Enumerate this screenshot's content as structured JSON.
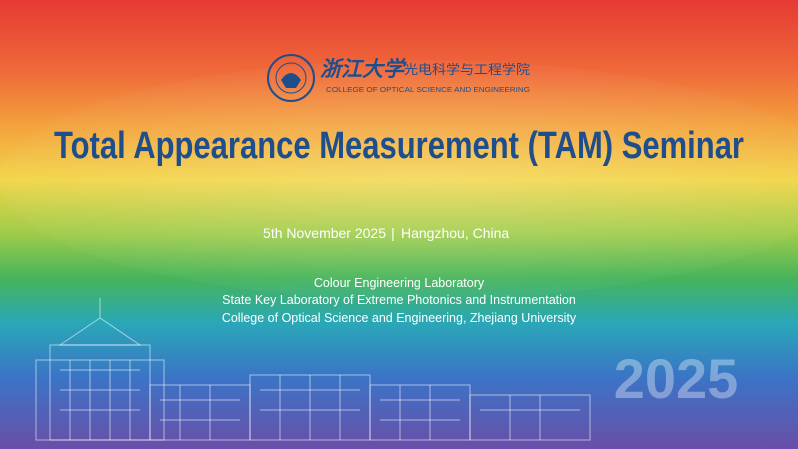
{
  "logo": {
    "university": "浙江大学",
    "school_cn": "光电科学与工程学院",
    "school_en": "COLLEGE OF OPTICAL SCIENCE AND ENGINEERING"
  },
  "title": "Total Appearance Measurement (TAM) Seminar",
  "event": {
    "date": "5th November 2025",
    "separator": "|",
    "location": "Hangzhou, China"
  },
  "organizers": [
    "Colour Engineering Laboratory",
    "State Key Laboratory of Extreme Photonics and Instrumentation",
    "College of Optical Science and Engineering, Zhejiang University"
  ],
  "watermark": "2025"
}
